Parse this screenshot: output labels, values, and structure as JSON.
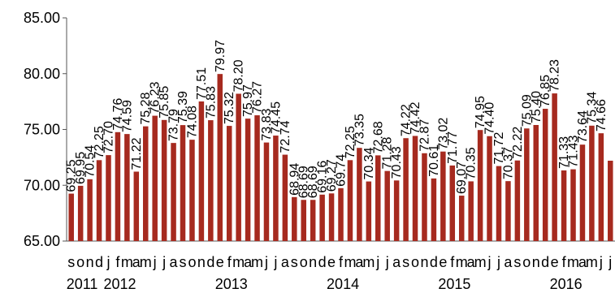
{
  "chart_data": {
    "type": "bar",
    "title": "",
    "xlabel": "",
    "ylabel": "",
    "ylim": [
      65,
      85
    ],
    "y_ticks": [
      "65.00",
      "70.00",
      "75.00",
      "80.00",
      "85.00"
    ],
    "grid": false,
    "legend": "none",
    "bar_color": "#a62a1f",
    "month_letters": [
      "s",
      "o",
      "n",
      "d",
      "j",
      "f",
      "m",
      "a",
      "m",
      "j",
      "j",
      "a",
      "s",
      "o",
      "n",
      "d",
      "e",
      "f",
      "m",
      "a",
      "m",
      "j",
      "j",
      "a",
      "s",
      "o",
      "n",
      "d",
      "e",
      "f",
      "m",
      "a",
      "m",
      "j",
      "j",
      "a",
      "s",
      "o",
      "n",
      "d",
      "e",
      "f",
      "m",
      "a",
      "m",
      "j",
      "j",
      "a",
      "s",
      "o",
      "n",
      "d",
      "e",
      "f",
      "m",
      "a",
      "m",
      "j",
      "j"
    ],
    "year_labels": [
      {
        "text": "2011",
        "at_index": 0
      },
      {
        "text": "2012",
        "at_index": 4
      },
      {
        "text": "2013",
        "at_index": 16
      },
      {
        "text": "2014",
        "at_index": 28
      },
      {
        "text": "2015",
        "at_index": 40
      },
      {
        "text": "2016",
        "at_index": 52
      }
    ],
    "values": [
      69.25,
      69.95,
      70.54,
      72.25,
      72.7,
      74.76,
      74.59,
      71.22,
      75.28,
      76.23,
      75.85,
      73.79,
      75.39,
      74.08,
      77.51,
      75.83,
      79.97,
      75.32,
      78.2,
      75.97,
      76.27,
      73.83,
      74.45,
      72.74,
      68.94,
      68.69,
      68.69,
      69.16,
      69.27,
      69.74,
      72.25,
      73.35,
      70.34,
      72.68,
      71.28,
      70.43,
      74.22,
      74.42,
      72.87,
      70.61,
      73.02,
      71.77,
      69.07,
      70.35,
      74.95,
      74.4,
      71.72,
      70.37,
      72.22,
      75.09,
      75.4,
      76.85,
      78.23,
      71.33,
      71.43,
      73.64,
      75.34,
      74.66,
      72.2
    ],
    "value_labels": [
      "69.25",
      "69.95",
      "70.54",
      "72.25",
      "72.70",
      "74.76",
      "74.59",
      "71.22",
      "75.28",
      "76.23",
      "75.85",
      "73.79",
      "75.39",
      "74.08",
      "77.51",
      "75.83",
      "79.97",
      "75.32",
      "78.20",
      "75.97",
      "76.27",
      "73.83",
      "74.45",
      "72.74",
      "68.94",
      "68.69",
      "68.69",
      "69.16",
      "69.27",
      "69.74",
      "72.25",
      "73.35",
      "70.34",
      "72.68",
      "71.28",
      "70.43",
      "74.22",
      "74.42",
      "72.87",
      "70.61",
      "73.02",
      "71.77",
      "69.07",
      "70.35",
      "74.95",
      "74.40",
      "71.72",
      "70.37",
      "72.22",
      "75.09",
      "75.40",
      "76.85",
      "78.23",
      "71.33",
      "71.43",
      "73.64",
      "75.34",
      "74.66",
      ""
    ]
  }
}
